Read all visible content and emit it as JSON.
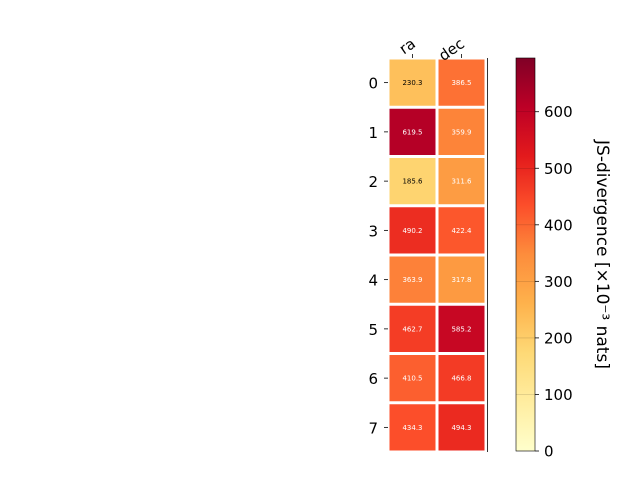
{
  "chart_data": {
    "type": "heatmap",
    "title": "",
    "xlabel": "",
    "ylabel": "",
    "columns": [
      "ra",
      "dec"
    ],
    "rows": [
      "0",
      "1",
      "2",
      "3",
      "4",
      "5",
      "6",
      "7"
    ],
    "values": [
      [
        230.3,
        386.5
      ],
      [
        619.5,
        359.9
      ],
      [
        185.6,
        311.6
      ],
      [
        490.2,
        422.4
      ],
      [
        363.9,
        317.8
      ],
      [
        462.7,
        585.2
      ],
      [
        410.5,
        466.8
      ],
      [
        434.3,
        494.3
      ]
    ],
    "value_labels": [
      [
        "230.3",
        "386.5"
      ],
      [
        "619.5",
        "359.9"
      ],
      [
        "185.6",
        "311.6"
      ],
      [
        "490.2",
        "422.4"
      ],
      [
        "363.9",
        "317.8"
      ],
      [
        "462.7",
        "585.2"
      ],
      [
        "410.5",
        "466.8"
      ],
      [
        "434.3",
        "494.3"
      ]
    ],
    "colorbar": {
      "label": "JS-divergence [×10⁻³ nats]",
      "range": [
        0,
        695
      ],
      "ticks": [
        0,
        100,
        200,
        300,
        400,
        500,
        600
      ],
      "tick_labels": [
        "0",
        "100",
        "200",
        "300",
        "400",
        "500",
        "600"
      ],
      "colormap": "YlOrRd",
      "colormap_stops": [
        "#ffffcc",
        "#ffeda0",
        "#fed976",
        "#feb24c",
        "#fd8d3c",
        "#fc4e2a",
        "#e31a1c",
        "#bd0026",
        "#800026"
      ]
    },
    "grid": false,
    "cell_border_color": "#ffffff"
  }
}
